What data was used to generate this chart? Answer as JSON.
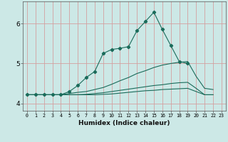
{
  "xlabel": "Humidex (Indice chaleur)",
  "ylabel": "",
  "bg_color": "#cce8e6",
  "grid_color": "#d4a0a0",
  "line_color": "#1a6b5a",
  "x": [
    0,
    1,
    2,
    3,
    4,
    5,
    6,
    7,
    8,
    9,
    10,
    11,
    12,
    13,
    14,
    15,
    16,
    17,
    18,
    19,
    20,
    21,
    22,
    23
  ],
  "line1": [
    4.22,
    4.22,
    4.22,
    4.22,
    4.22,
    4.3,
    4.45,
    4.65,
    4.8,
    5.25,
    5.35,
    5.38,
    5.42,
    5.82,
    6.05,
    6.28,
    5.85,
    5.45,
    5.05,
    5.0,
    null,
    null,
    null,
    null
  ],
  "line2": [
    4.22,
    4.22,
    4.22,
    4.22,
    4.22,
    4.25,
    4.28,
    4.3,
    4.35,
    4.4,
    4.48,
    4.57,
    4.65,
    4.75,
    4.82,
    4.9,
    4.96,
    5.0,
    5.03,
    5.05,
    4.68,
    4.38,
    4.35,
    null
  ],
  "line3": [
    4.22,
    4.22,
    4.22,
    4.22,
    4.22,
    4.22,
    4.22,
    4.23,
    4.25,
    4.27,
    4.3,
    4.33,
    4.36,
    4.39,
    4.42,
    4.45,
    4.47,
    4.5,
    4.52,
    4.53,
    4.38,
    4.22,
    4.22,
    null
  ],
  "line4": [
    4.22,
    4.22,
    4.22,
    4.22,
    4.22,
    4.22,
    4.22,
    4.22,
    4.22,
    4.23,
    4.24,
    4.26,
    4.28,
    4.3,
    4.32,
    4.33,
    4.35,
    4.36,
    4.37,
    4.38,
    4.3,
    4.22,
    4.22,
    null
  ],
  "ylim": [
    3.82,
    6.55
  ],
  "xlim": [
    -0.5,
    23.5
  ],
  "yticks": [
    4,
    5,
    6
  ],
  "xticks": [
    0,
    1,
    2,
    3,
    4,
    5,
    6,
    7,
    8,
    9,
    10,
    11,
    12,
    13,
    14,
    15,
    16,
    17,
    18,
    19,
    20,
    21,
    22,
    23
  ]
}
